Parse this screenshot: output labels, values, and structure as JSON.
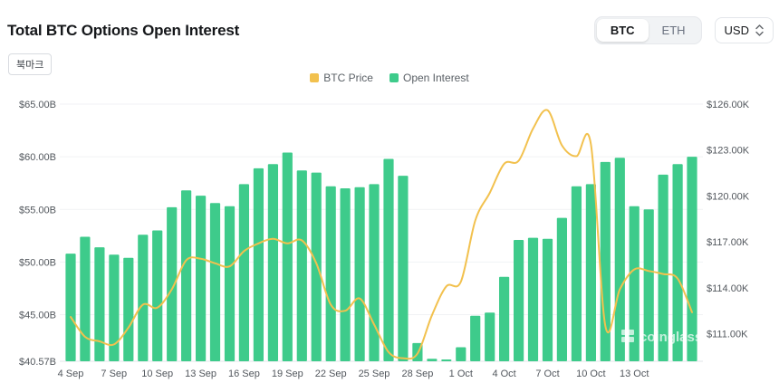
{
  "header": {
    "title": "Total BTC Options Open Interest",
    "bookmark_label": "북마크",
    "coin_options": [
      "BTC",
      "ETH"
    ],
    "coin_selected": "BTC",
    "currency": "USD"
  },
  "legend": [
    {
      "label": "BTC Price",
      "color": "#F2C14E"
    },
    {
      "label": "Open Interest",
      "color": "#3ECB8B"
    }
  ],
  "watermark": "coinglass",
  "chart_data": {
    "type": "combo",
    "title": "Total BTC Options Open Interest",
    "x": [
      "4 Sep",
      "5 Sep",
      "6 Sep",
      "7 Sep",
      "8 Sep",
      "9 Sep",
      "10 Sep",
      "11 Sep",
      "12 Sep",
      "13 Sep",
      "14 Sep",
      "15 Sep",
      "16 Sep",
      "17 Sep",
      "18 Sep",
      "19 Sep",
      "20 Sep",
      "21 Sep",
      "22 Sep",
      "23 Sep",
      "24 Sep",
      "25 Sep",
      "26 Sep",
      "27 Sep",
      "28 Sep",
      "29 Sep",
      "30 Sep",
      "1 Oct",
      "2 Oct",
      "3 Oct",
      "4 Oct",
      "5 Oct",
      "6 Oct",
      "7 Oct",
      "8 Oct",
      "9 Oct",
      "10 Oct",
      "11 Oct",
      "12 Oct",
      "13 Oct",
      "14 Oct",
      "15 Oct",
      "16 Oct",
      "17 Oct"
    ],
    "x_tick_labels": [
      "4 Sep",
      "7 Sep",
      "10 Sep",
      "13 Sep",
      "16 Sep",
      "19 Sep",
      "22 Sep",
      "25 Sep",
      "28 Sep",
      "1 Oct",
      "4 Oct",
      "7 Oct",
      "10 Oct",
      "13 Oct"
    ],
    "x_tick_step": 3,
    "series": [
      {
        "name": "Open Interest",
        "type": "bar",
        "axis": "left",
        "unit": "$B",
        "color": "#3ECB8B",
        "values": [
          50.8,
          52.4,
          51.4,
          50.7,
          50.4,
          52.6,
          53.0,
          55.2,
          56.8,
          56.3,
          55.6,
          55.3,
          57.4,
          58.9,
          59.3,
          60.4,
          58.7,
          58.5,
          57.2,
          57.0,
          57.1,
          57.4,
          59.8,
          58.2,
          42.3,
          40.8,
          40.57,
          41.9,
          44.9,
          45.2,
          48.6,
          52.1,
          52.3,
          52.2,
          54.2,
          57.2,
          57.4,
          59.5,
          59.9,
          55.3,
          55.0,
          58.3,
          59.3,
          60.0
        ]
      },
      {
        "name": "BTC Price",
        "type": "line",
        "axis": "right",
        "unit": "$K",
        "color": "#F2C14E",
        "values": [
          112.1,
          110.8,
          110.5,
          110.3,
          111.4,
          112.9,
          112.7,
          113.9,
          115.8,
          115.9,
          115.6,
          115.4,
          116.4,
          116.9,
          117.2,
          116.9,
          117.1,
          115.6,
          112.9,
          112.5,
          113.3,
          111.6,
          109.8,
          109.4,
          109.7,
          112.2,
          114.1,
          114.4,
          118.4,
          120.2,
          122.1,
          122.3,
          124.4,
          125.6,
          123.3,
          122.6,
          123.4,
          111.5,
          113.9,
          115.2,
          115.1,
          114.9,
          114.6,
          112.4
        ]
      }
    ],
    "left_axis": {
      "min": 40.57,
      "max": 65,
      "ticks": [
        {
          "label": "$65.00B",
          "value": 65
        },
        {
          "label": "$60.00B",
          "value": 60
        },
        {
          "label": "$55.00B",
          "value": 55
        },
        {
          "label": "$50.00B",
          "value": 50
        },
        {
          "label": "$45.00B",
          "value": 45
        },
        {
          "label": "$40.57B",
          "value": 40.57
        }
      ]
    },
    "right_axis": {
      "min": 111,
      "max": 126,
      "render_min": 109.2,
      "ticks": [
        {
          "label": "$126.00K",
          "value": 126
        },
        {
          "label": "$123.00K",
          "value": 123
        },
        {
          "label": "$120.00K",
          "value": 120
        },
        {
          "label": "$117.00K",
          "value": 117
        },
        {
          "label": "$114.00K",
          "value": 114
        },
        {
          "label": "$111.00K",
          "value": 111
        }
      ]
    },
    "grid": "horizontal",
    "legend_position": "top-center"
  }
}
